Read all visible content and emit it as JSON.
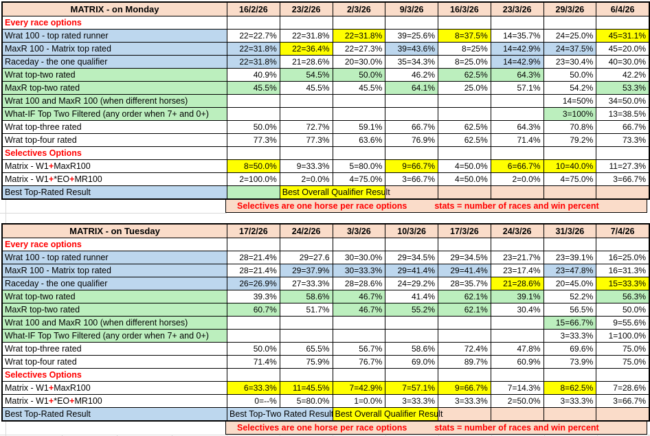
{
  "colors": {
    "peach": "#FADCC9",
    "blue": "#BDD7EE",
    "green": "#BCEFBE",
    "yellow": "#FFFF00",
    "red": "#FF0000",
    "grid": "#000000",
    "faint_grid": "#D9D9D9"
  },
  "annotation": {
    "left": "Selectives are one horse per race options",
    "right": "stats = number of races and win percent"
  },
  "tables": [
    {
      "title": "MATRIX - on Monday",
      "dates": [
        "16/2/26",
        "23/2/26",
        "2/3/26",
        "9/3/26",
        "16/3/26",
        "23/3/26",
        "29/3/26",
        "6/4/26"
      ],
      "rows": [
        {
          "label": "Every race options",
          "type": "section"
        },
        {
          "label": "Wrat 100 - top rated runner",
          "labelBg": "b",
          "cells": [
            [
              "22=22.7%",
              "w"
            ],
            [
              "22=31.8%",
              "w"
            ],
            [
              "22=31.8%",
              "y"
            ],
            [
              "39=25.6%",
              "w"
            ],
            [
              "8=37.5%",
              "y"
            ],
            [
              "14=35.7%",
              "w"
            ],
            [
              "24=25.0%",
              "w"
            ],
            [
              "45=31.1%",
              "y"
            ]
          ]
        },
        {
          "label": "MaxR 100 - Matrix top rated",
          "labelBg": "b",
          "cells": [
            [
              "22=31.8%",
              "b"
            ],
            [
              "22=36.4%",
              "y"
            ],
            [
              "22=27.3%",
              "w"
            ],
            [
              "39=43.6%",
              "b"
            ],
            [
              "8=25%",
              "w"
            ],
            [
              "14=42.9%",
              "b"
            ],
            [
              "24=37.5%",
              "b"
            ],
            [
              "45=20.0%",
              "w"
            ]
          ]
        },
        {
          "label": "Raceday - the one qualifier",
          "labelBg": "b",
          "cells": [
            [
              "22=31.8%",
              "b"
            ],
            [
              "21=28.6%",
              "w"
            ],
            [
              "20=30.0%",
              "w"
            ],
            [
              "35=34.3%",
              "w"
            ],
            [
              "8=25.0%",
              "w"
            ],
            [
              "14=42.9%",
              "b"
            ],
            [
              "23=30.4%",
              "w"
            ],
            [
              "40=30.0%",
              "w"
            ]
          ]
        },
        {
          "label": "Wrat top-two rated",
          "labelBg": "g",
          "cells": [
            [
              "40.9%",
              "w"
            ],
            [
              "54.5%",
              "g"
            ],
            [
              "50.0%",
              "g"
            ],
            [
              "46.2%",
              "w"
            ],
            [
              "62.5%",
              "g"
            ],
            [
              "64.3%",
              "g"
            ],
            [
              "50.0%",
              "w"
            ],
            [
              "42.2%",
              "w"
            ]
          ]
        },
        {
          "label": "MaxR top-two rated",
          "labelBg": "g",
          "cells": [
            [
              "45.5%",
              "g"
            ],
            [
              "45.5%",
              "w"
            ],
            [
              "45.5%",
              "w"
            ],
            [
              "64.1%",
              "g"
            ],
            [
              "25.0%",
              "w"
            ],
            [
              "57.1%",
              "w"
            ],
            [
              "54.2%",
              "w"
            ],
            [
              "53.3%",
              "g"
            ]
          ]
        },
        {
          "label": "Wrat 100 and MaxR 100 (when different horses)",
          "labelBg": "g",
          "cells": [
            [
              "",
              "w"
            ],
            [
              "",
              "w"
            ],
            [
              "",
              "w"
            ],
            [
              "",
              "w"
            ],
            [
              "",
              "w"
            ],
            [
              "",
              "w"
            ],
            [
              "14=50%",
              "w"
            ],
            [
              "34=50.0%",
              "w"
            ]
          ]
        },
        {
          "label": "What-IF Top Two Filtered (any order when 7+ and 0+)",
          "labelBg": "g",
          "cells": [
            [
              "",
              "w"
            ],
            [
              "",
              "w"
            ],
            [
              "",
              "w"
            ],
            [
              "",
              "w"
            ],
            [
              "",
              "w"
            ],
            [
              "",
              "w"
            ],
            [
              "3=100%",
              "g"
            ],
            [
              "13=38.5%",
              "w"
            ]
          ]
        },
        {
          "label": "Wrat top-three rated",
          "labelBg": "w",
          "cells": [
            [
              "50.0%",
              "w"
            ],
            [
              "72.7%",
              "w"
            ],
            [
              "59.1%",
              "w"
            ],
            [
              "66.7%",
              "w"
            ],
            [
              "62.5%",
              "w"
            ],
            [
              "64.3%",
              "w"
            ],
            [
              "70.8%",
              "w"
            ],
            [
              "66.7%",
              "w"
            ]
          ]
        },
        {
          "label": "Wrat top-four rated",
          "labelBg": "w",
          "cells": [
            [
              "77.3%",
              "w"
            ],
            [
              "77.3%",
              "w"
            ],
            [
              "63.6%",
              "w"
            ],
            [
              "76.9%",
              "w"
            ],
            [
              "62.5%",
              "w"
            ],
            [
              "71.4%",
              "w"
            ],
            [
              "79.2%",
              "w"
            ],
            [
              "73.3%",
              "w"
            ]
          ]
        },
        {
          "label": "Selectives Options",
          "type": "section"
        },
        {
          "label": "Matrix - W1+MaxR100",
          "labelBg": "w",
          "redPlus": true,
          "cells": [
            [
              "8=50.0%",
              "y"
            ],
            [
              "9=33.3%",
              "w"
            ],
            [
              "5=80.0%",
              "w"
            ],
            [
              "9=66.7%",
              "y"
            ],
            [
              "4=50.0%",
              "w"
            ],
            [
              "6=66.7%",
              "y"
            ],
            [
              "10=40.0%",
              "y"
            ],
            [
              "11=27.3%",
              "w"
            ]
          ]
        },
        {
          "label": "Matrix - W1+*EO+MR100",
          "labelBg": "w",
          "redPlus": true,
          "cells": [
            [
              "2=100.0%",
              "w"
            ],
            [
              "2=0.0%",
              "w"
            ],
            [
              "4=75.0%",
              "w"
            ],
            [
              "3=66.7%",
              "w"
            ],
            [
              "4=50.0%",
              "w"
            ],
            [
              "2=0.0%",
              "w"
            ],
            [
              "4=75.0%",
              "w"
            ],
            [
              "3=66.7%",
              "w"
            ]
          ]
        }
      ],
      "best_row": {
        "label": "Best Top-Rated Result",
        "segments": [
          {
            "span": 1,
            "bg": "g",
            "text": "",
            "mode": "cells"
          },
          {
            "span": 2,
            "bg": "y",
            "text": "Best Overall Qualifier Result",
            "mode": "overflow"
          },
          {
            "span": 5,
            "bg": "p",
            "text": "",
            "mode": "cells"
          }
        ]
      }
    },
    {
      "title": "MATRIX - on Tuesday",
      "dates": [
        "17/2/26",
        "24/2/26",
        "3/3/26",
        "10/3/26",
        "17/3/26",
        "24/3/26",
        "31/3/26",
        "7/4/26"
      ],
      "rows": [
        {
          "label": "Every race options",
          "type": "section"
        },
        {
          "label": "Wrat 100 - top rated runner",
          "labelBg": "b",
          "cells": [
            [
              "28=21.4%",
              "w"
            ],
            [
              "29=27.6",
              "w"
            ],
            [
              "30=30.0%",
              "w"
            ],
            [
              "29=34.5%",
              "w"
            ],
            [
              "29=34.5%",
              "w"
            ],
            [
              "23=21.7%",
              "w"
            ],
            [
              "23=39.1%",
              "w"
            ],
            [
              "16=25.0%",
              "w"
            ]
          ]
        },
        {
          "label": "MaxR 100 - Matrix top rated",
          "labelBg": "b",
          "cells": [
            [
              "28=21.4%",
              "w"
            ],
            [
              "29=37.9%",
              "b"
            ],
            [
              "30=33.3%",
              "b"
            ],
            [
              "29=41.4%",
              "b"
            ],
            [
              "29=41.4%",
              "b"
            ],
            [
              "23=17.4%",
              "w"
            ],
            [
              "23=47.8%",
              "b"
            ],
            [
              "16=31.3%",
              "w"
            ]
          ]
        },
        {
          "label": "Raceday - the one qualifier",
          "labelBg": "b",
          "cells": [
            [
              "26=26.9%",
              "b"
            ],
            [
              "27=33.3%",
              "w"
            ],
            [
              "28=28.6%",
              "w"
            ],
            [
              "24=29.2%",
              "w"
            ],
            [
              "28=35.7%",
              "w"
            ],
            [
              "21=28.6%",
              "y"
            ],
            [
              "20=45.0%",
              "w"
            ],
            [
              "15=33.3%",
              "y"
            ]
          ]
        },
        {
          "label": "Wrat top-two rated",
          "labelBg": "g",
          "cells": [
            [
              "39.3%",
              "w"
            ],
            [
              "58.6%",
              "g"
            ],
            [
              "46.7%",
              "g"
            ],
            [
              "41.4%",
              "w"
            ],
            [
              "62.1%",
              "g"
            ],
            [
              "39.1%",
              "g"
            ],
            [
              "52.2%",
              "w"
            ],
            [
              "56.3%",
              "g"
            ]
          ]
        },
        {
          "label": "MaxR top-two rated",
          "labelBg": "g",
          "cells": [
            [
              "60.7%",
              "g"
            ],
            [
              "51.7%",
              "w"
            ],
            [
              "46.7%",
              "g"
            ],
            [
              "55.2%",
              "g"
            ],
            [
              "62.1%",
              "g"
            ],
            [
              "30.4%",
              "w"
            ],
            [
              "56.5%",
              "w"
            ],
            [
              "50.0%",
              "w"
            ]
          ]
        },
        {
          "label": "Wrat 100 and MaxR 100 (when different horses)",
          "labelBg": "g",
          "cells": [
            [
              "",
              "w"
            ],
            [
              "",
              "w"
            ],
            [
              "",
              "w"
            ],
            [
              "",
              "w"
            ],
            [
              "",
              "w"
            ],
            [
              "",
              "w"
            ],
            [
              "15=66.7%",
              "g"
            ],
            [
              "9=55.6%",
              "w"
            ]
          ]
        },
        {
          "label": "What-IF Top Two Filtered (any order when 7+ and 0+)",
          "labelBg": "g",
          "cells": [
            [
              "",
              "w"
            ],
            [
              "",
              "w"
            ],
            [
              "",
              "w"
            ],
            [
              "",
              "w"
            ],
            [
              "",
              "w"
            ],
            [
              "",
              "w"
            ],
            [
              "3=33.3%",
              "w"
            ],
            [
              "1=100.0%",
              "w"
            ]
          ]
        },
        {
          "label": "Wrat top-three rated",
          "labelBg": "w",
          "cells": [
            [
              "50.0%",
              "w"
            ],
            [
              "65.5%",
              "w"
            ],
            [
              "56.7%",
              "w"
            ],
            [
              "58.6%",
              "w"
            ],
            [
              "72.4%",
              "w"
            ],
            [
              "47.8%",
              "w"
            ],
            [
              "69.6%",
              "w"
            ],
            [
              "75.0%",
              "w"
            ]
          ]
        },
        {
          "label": "Wrat top-four rated",
          "labelBg": "w",
          "cells": [
            [
              "71.4%",
              "w"
            ],
            [
              "75.9%",
              "w"
            ],
            [
              "76.7%",
              "w"
            ],
            [
              "69.0%",
              "w"
            ],
            [
              "89.7%",
              "w"
            ],
            [
              "60.9%",
              "w"
            ],
            [
              "73.9%",
              "w"
            ],
            [
              "75.0%",
              "w"
            ]
          ]
        },
        {
          "label": "Selectives Options",
          "type": "section"
        },
        {
          "label": "Matrix - W1+MaxR100",
          "labelBg": "w",
          "redPlus": true,
          "cells": [
            [
              "6=33.3%",
              "y"
            ],
            [
              "11=45.5%",
              "y"
            ],
            [
              "7=42.9%",
              "y"
            ],
            [
              "7=57.1%",
              "y"
            ],
            [
              "9=66.7%",
              "y"
            ],
            [
              "7=14.3%",
              "w"
            ],
            [
              "8=62.5%",
              "y"
            ],
            [
              "7=28.6%",
              "w"
            ]
          ]
        },
        {
          "label": "Matrix - W1+*EO+MR100",
          "labelBg": "w",
          "redPlus": true,
          "cells": [
            [
              "0=--%",
              "w"
            ],
            [
              "5=80.0%",
              "w"
            ],
            [
              "1=0.0%",
              "w"
            ],
            [
              "3=33.3%",
              "w"
            ],
            [
              "3=33.3%",
              "w"
            ],
            [
              "2=50.0%",
              "w"
            ],
            [
              "3=33.3%",
              "w"
            ],
            [
              "3=66.7%",
              "w"
            ]
          ]
        }
      ],
      "best_row": {
        "label": "Best Top-Rated Result",
        "segments": [
          {
            "span": 2,
            "bg": "b",
            "text": "Best Top-Two Rated Result",
            "mode": "clip"
          },
          {
            "span": 2,
            "bg": "y",
            "text": "Best Overall Qualifier Result",
            "mode": "overflow"
          },
          {
            "span": 4,
            "bg": "p",
            "text": "",
            "mode": "cells"
          }
        ]
      }
    }
  ]
}
